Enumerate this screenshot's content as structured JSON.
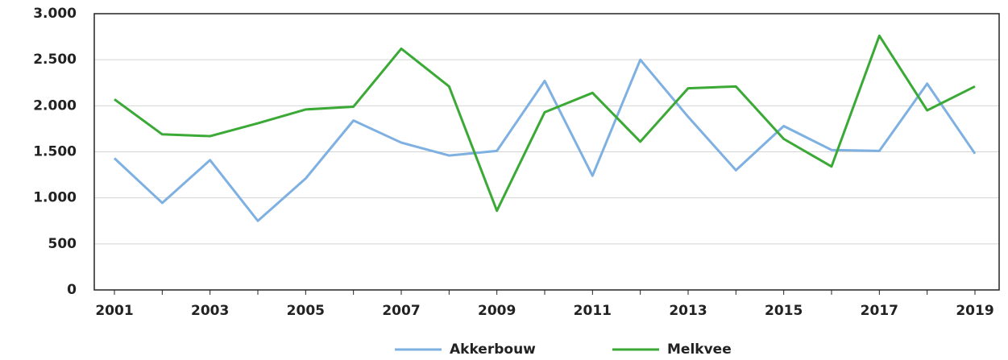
{
  "chart_data": {
    "type": "line",
    "categories": [
      "2001",
      null,
      "2003",
      null,
      "2005",
      null,
      "2007",
      null,
      "2009",
      null,
      "2011",
      null,
      "2013",
      null,
      "2015",
      null,
      "2017",
      null,
      "2019"
    ],
    "series": [
      {
        "name": "Akkerbouw",
        "color": "#7eb0e2",
        "values": [
          1430,
          945,
          1410,
          750,
          1210,
          1840,
          1600,
          1460,
          1510,
          2270,
          1240,
          2500,
          1880,
          1300,
          1780,
          1520,
          1510,
          2240,
          1480
        ]
      },
      {
        "name": "Melkvee",
        "color": "#3aa935",
        "values": [
          2070,
          1690,
          1670,
          1810,
          1960,
          1990,
          2620,
          2210,
          860,
          1930,
          2140,
          1610,
          2190,
          2210,
          1640,
          1340,
          2760,
          1950,
          2210
        ]
      }
    ],
    "ylim": [
      0,
      3000
    ],
    "yticks": [
      0,
      500,
      {
        "value": 1000,
        "label": "1.000"
      },
      {
        "value": 1500,
        "label": "1.500"
      },
      {
        "value": 2000,
        "label": "2.000"
      },
      {
        "value": 2500,
        "label": "2.500"
      },
      {
        "value": 3000,
        "label": "3.000"
      }
    ],
    "grid": true,
    "legend": "bottom"
  }
}
